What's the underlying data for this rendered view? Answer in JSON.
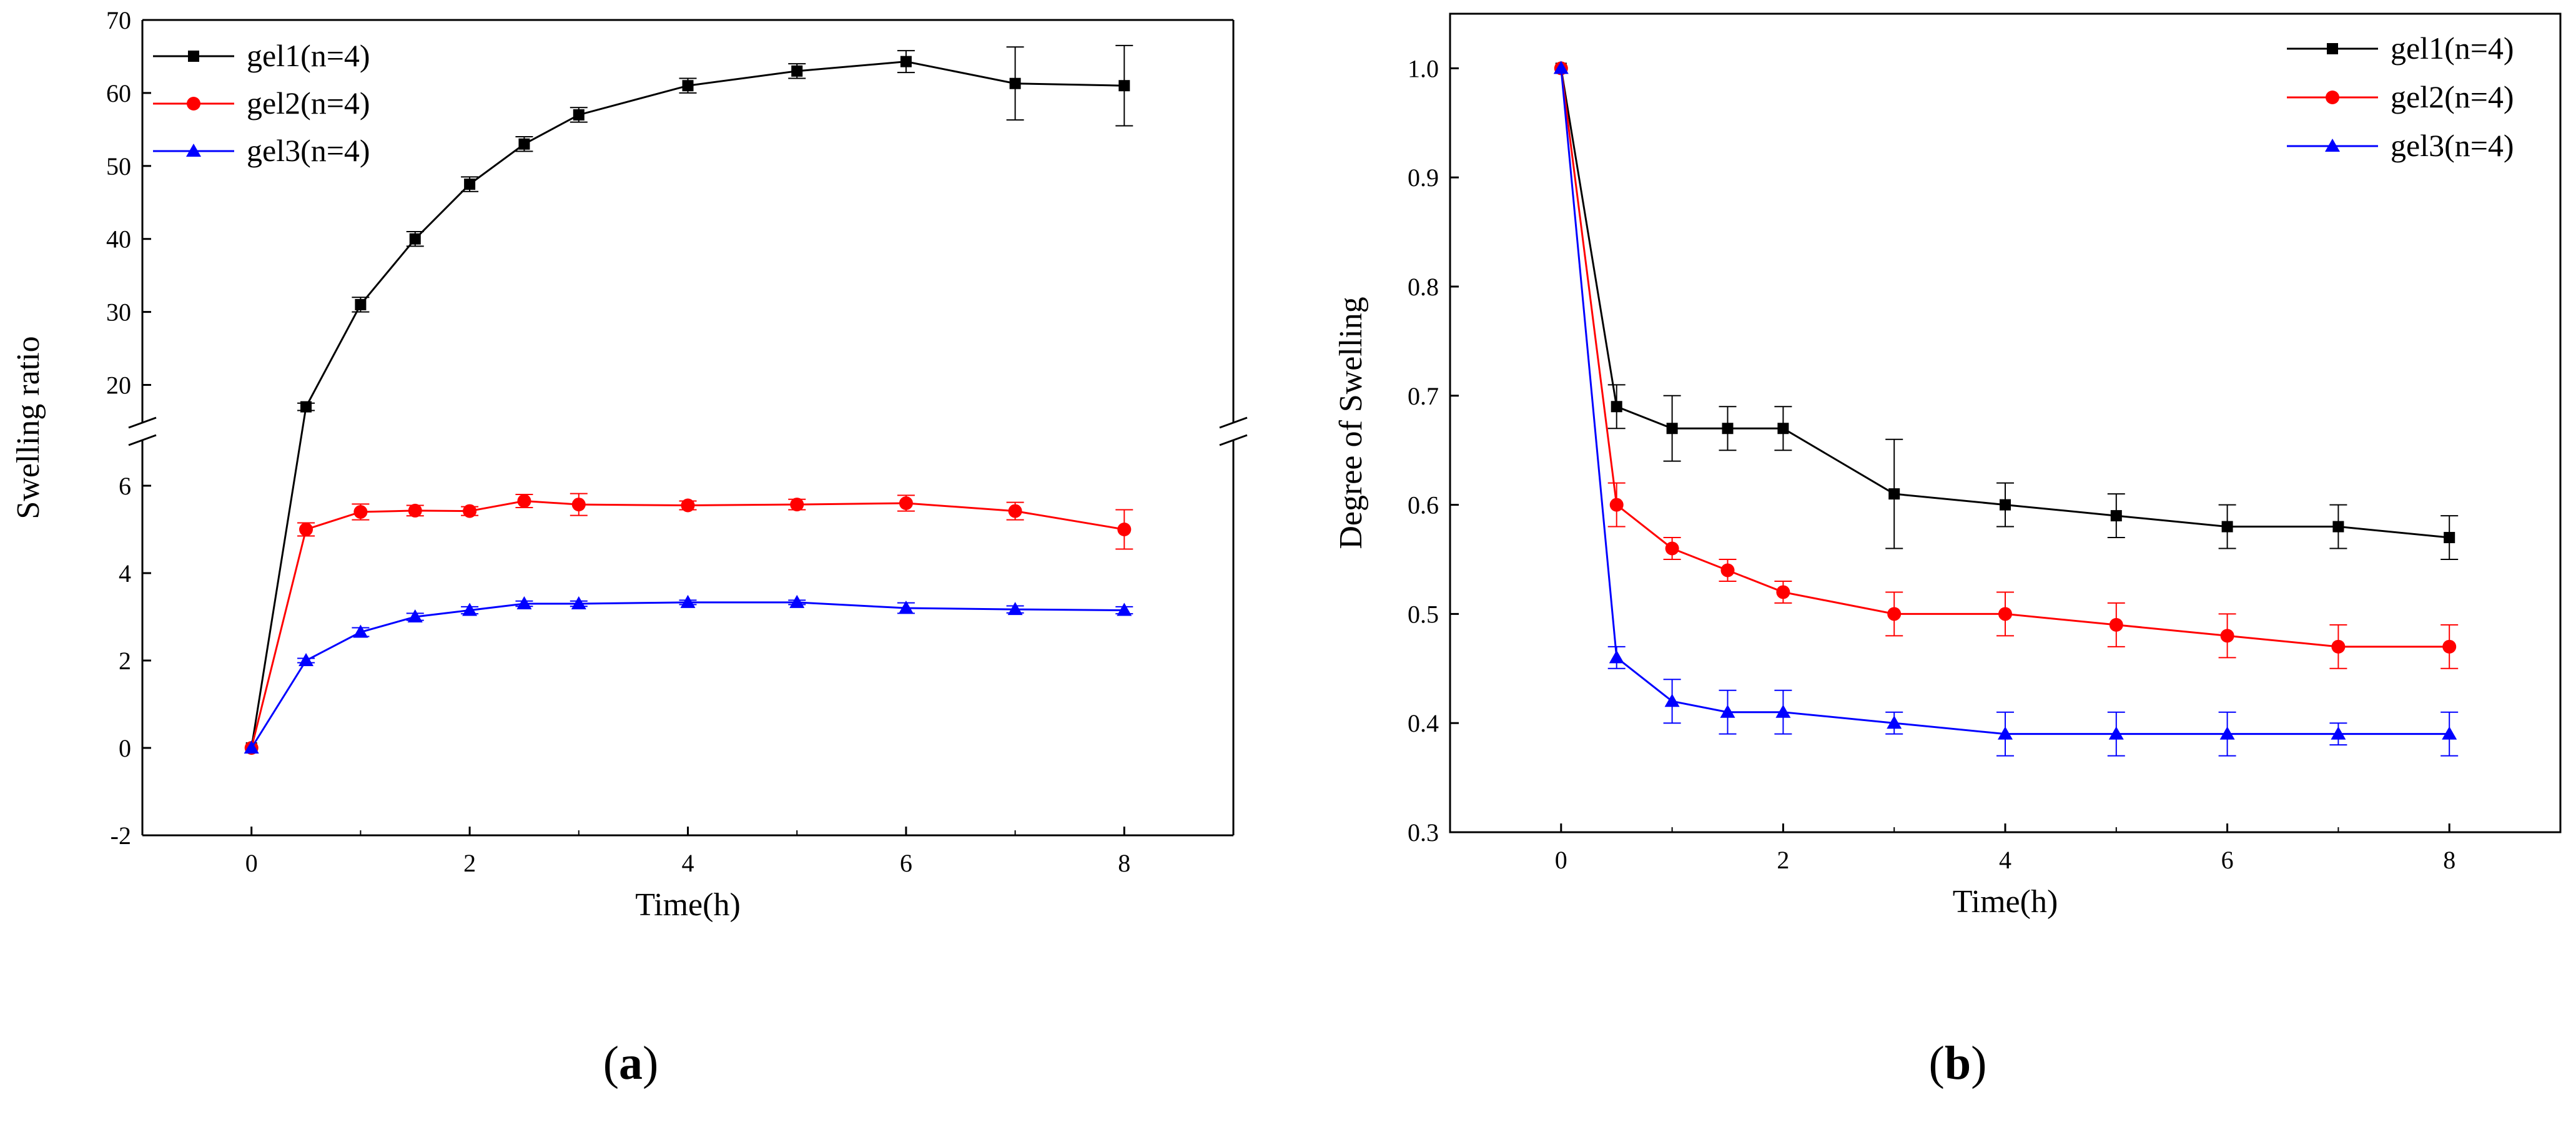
{
  "chart_data": [
    {
      "type": "line",
      "panel_label": "a",
      "xlabel": "Time(h)",
      "ylabel": "Swelling ratio",
      "xlim": [
        -1,
        9
      ],
      "xticks": [
        "0",
        "2",
        "4",
        "6",
        "8"
      ],
      "y_axis_break": true,
      "ylim_lower": [
        -2,
        7
      ],
      "ylim_upper": [
        15,
        70
      ],
      "yticks_lower": [
        "-2",
        "0",
        "2",
        "4",
        "6"
      ],
      "yticks_upper": [
        "20",
        "30",
        "40",
        "50",
        "60",
        "70"
      ],
      "legend_position": "top-left",
      "x": [
        0,
        0.5,
        1,
        1.5,
        2,
        2.5,
        3,
        4,
        5,
        6,
        7,
        8
      ],
      "series": [
        {
          "name": "gel1(n=4)",
          "color": "#000000",
          "marker": "square",
          "values": [
            0,
            17,
            31,
            40,
            47.5,
            53,
            57,
            61,
            63,
            64.3,
            61.3,
            61
          ],
          "errors": [
            0,
            0.5,
            1,
            1,
            1,
            1,
            1,
            1,
            1,
            1.5,
            5,
            5.5
          ]
        },
        {
          "name": "gel2(n=4)",
          "color": "#ff0000",
          "marker": "circle",
          "values": [
            0,
            5,
            5.4,
            5.43,
            5.42,
            5.65,
            5.57,
            5.55,
            5.57,
            5.6,
            5.42,
            5
          ],
          "errors": [
            0,
            0.15,
            0.18,
            0.12,
            0.1,
            0.15,
            0.25,
            0.1,
            0.12,
            0.18,
            0.2,
            0.45
          ]
        },
        {
          "name": "gel3(n=4)",
          "color": "#0000ff",
          "marker": "triangle",
          "values": [
            0,
            2,
            2.65,
            3,
            3.15,
            3.3,
            3.3,
            3.33,
            3.33,
            3.2,
            3.17,
            3.15
          ],
          "errors": [
            0,
            0.05,
            0.1,
            0.08,
            0.08,
            0.06,
            0.06,
            0.05,
            0.05,
            0.12,
            0.08,
            0.08
          ]
        }
      ]
    },
    {
      "type": "line",
      "panel_label": "b",
      "xlabel": "Time(h)",
      "ylabel": "Degree of Swelling",
      "xlim": [
        -1,
        9
      ],
      "ylim": [
        0.3,
        1.05
      ],
      "xticks": [
        "0",
        "2",
        "4",
        "6",
        "8"
      ],
      "yticks": [
        "0.3",
        "0.4",
        "0.5",
        "0.6",
        "0.7",
        "0.8",
        "0.9",
        "1.0"
      ],
      "legend_position": "top-right",
      "x": [
        0,
        0.5,
        1,
        1.5,
        2,
        3,
        4,
        5,
        6,
        7,
        8
      ],
      "series": [
        {
          "name": "gel1(n=4)",
          "color": "#000000",
          "marker": "square",
          "values": [
            1.0,
            0.69,
            0.67,
            0.67,
            0.67,
            0.61,
            0.6,
            0.59,
            0.58,
            0.58,
            0.57
          ],
          "errors": [
            0,
            0.02,
            0.03,
            0.02,
            0.02,
            0.05,
            0.02,
            0.02,
            0.02,
            0.02,
            0.02
          ]
        },
        {
          "name": "gel2(n=4)",
          "color": "#ff0000",
          "marker": "circle",
          "values": [
            1.0,
            0.6,
            0.56,
            0.54,
            0.52,
            0.5,
            0.5,
            0.49,
            0.48,
            0.47,
            0.47
          ],
          "errors": [
            0,
            0.02,
            0.01,
            0.01,
            0.01,
            0.02,
            0.02,
            0.02,
            0.02,
            0.02,
            0.02
          ]
        },
        {
          "name": "gel3(n=4)",
          "color": "#0000ff",
          "marker": "triangle",
          "values": [
            1.0,
            0.46,
            0.42,
            0.41,
            0.41,
            0.4,
            0.39,
            0.39,
            0.39,
            0.39,
            0.39
          ],
          "errors": [
            0,
            0.01,
            0.02,
            0.02,
            0.02,
            0.01,
            0.02,
            0.02,
            0.02,
            0.01,
            0.02
          ]
        }
      ]
    }
  ]
}
